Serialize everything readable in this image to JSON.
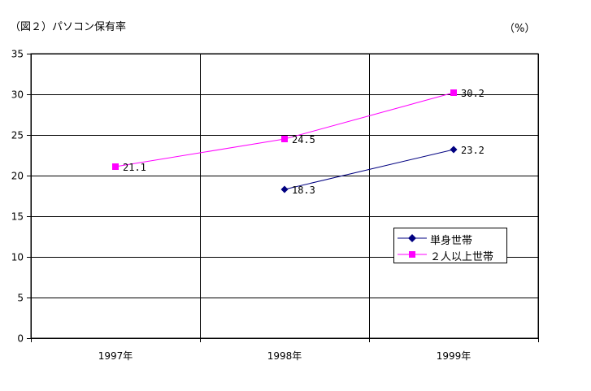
{
  "title": "（図２）パソコン保有率",
  "unit": "（%）",
  "chart_data": {
    "type": "line",
    "categories": [
      "1997年",
      "1998年",
      "1999年"
    ],
    "ylim": [
      0,
      35
    ],
    "yticks": [
      0,
      5,
      10,
      15,
      20,
      25,
      30,
      35
    ],
    "grid": true,
    "legend_position": "right",
    "series": [
      {
        "name": "単身世帯",
        "values": [
          null,
          18.3,
          23.2
        ],
        "labels": [
          "",
          "18.3",
          "23.2"
        ],
        "color": "#000080",
        "marker": "diamond"
      },
      {
        "name": "２人以上世帯",
        "values": [
          21.1,
          24.5,
          30.2
        ],
        "labels": [
          "21.1",
          "24.5",
          "30.2"
        ],
        "color": "#FF00FF",
        "marker": "square"
      }
    ]
  }
}
